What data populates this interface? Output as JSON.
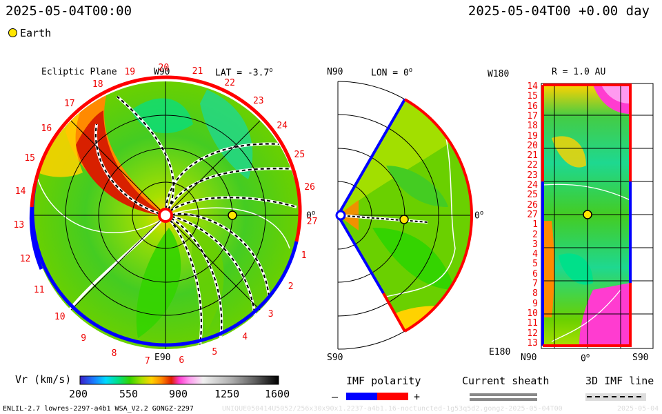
{
  "header": {
    "left_timestamp": "2025-05-04T00:00",
    "right_timestamp": "2025-05-04T00 +0.00 day",
    "earth_label": "Earth"
  },
  "ecliptic_panel": {
    "title": "Ecliptic Plane",
    "top_axis": "W90",
    "bottom_axis": "E90",
    "right_axis": "0",
    "lat_label": "LAT = -3.7",
    "degree_mark": "o",
    "carrington_days": [
      "19",
      "20",
      "21",
      "22",
      "23",
      "24",
      "25",
      "26",
      "27",
      "1",
      "2",
      "3",
      "4",
      "5",
      "6",
      "7",
      "8",
      "9",
      "10",
      "11",
      "12",
      "13",
      "14",
      "15",
      "16",
      "17",
      "18"
    ]
  },
  "meridional_panel": {
    "top_label": "N90",
    "bottom_label": "S90",
    "lon_label": "LON = 0",
    "right_axis": "0",
    "degree_mark": "o"
  },
  "radial_panel": {
    "title": "R = 1.0 AU",
    "top_left": "W180",
    "bottom_left": "E180",
    "bottom_axis": [
      "N90",
      "0",
      "S90"
    ],
    "degree_mark": "o",
    "day_labels": [
      "14",
      "15",
      "16",
      "17",
      "18",
      "19",
      "20",
      "21",
      "22",
      "23",
      "24",
      "25",
      "26",
      "27",
      "1",
      "2",
      "3",
      "4",
      "5",
      "6",
      "7",
      "8",
      "9",
      "10",
      "11",
      "12",
      "13"
    ]
  },
  "colorbar": {
    "label": "Vr (km/s)",
    "ticks": [
      "200",
      "550",
      "900",
      "1250",
      "1600"
    ],
    "colors": [
      "#3a1ec8",
      "#1a7cff",
      "#00d9ff",
      "#00e08a",
      "#34d400",
      "#a8e000",
      "#ffd200",
      "#ff8a00",
      "#e02000",
      "#ff3cd0",
      "#ff9af0",
      "#f0f0f0",
      "#b0b0b0",
      "#606060",
      "#000000"
    ]
  },
  "legend": {
    "imf_title": "IMF polarity",
    "imf_minus": "–",
    "imf_plus": "+",
    "imf_colors": {
      "negative": "#0000ff",
      "positive": "#ff0000"
    },
    "sheath_title": "Current sheath",
    "imf_line_title": "3D IMF line"
  },
  "footer": {
    "model_info": "ENLIL-2.7 lowres-2297-a4b1 WSA_V2.2 GONGZ-2297",
    "run_id": "UNIQUE050414U5052/256x30x90x1.2237-a4b1.16-noctuncted-1g53q5d2.gongz-2025-05-04T00",
    "date_tag": "2025-05-04"
  }
}
